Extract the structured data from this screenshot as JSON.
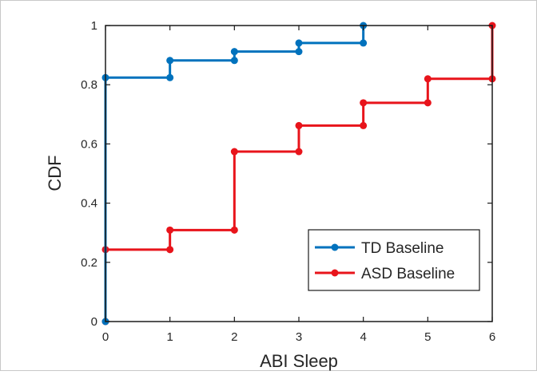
{
  "chart_data": {
    "type": "line",
    "step": true,
    "xlabel": "ABI Sleep",
    "ylabel": "CDF",
    "xlim": [
      0,
      6
    ],
    "ylim": [
      0,
      1
    ],
    "xticks": [
      0,
      1,
      2,
      3,
      4,
      5,
      6
    ],
    "yticks": [
      0,
      0.2,
      0.4,
      0.6,
      0.8,
      1
    ],
    "ytick_labels": [
      "0",
      "0.2",
      "0.4",
      "0.6",
      "0.8",
      "1"
    ],
    "grid": false,
    "legend_position": "bottom-right",
    "series": [
      {
        "name": "TD Baseline",
        "color": "#0072BD",
        "x": [
          0,
          1,
          2,
          3,
          4
        ],
        "y": [
          0.824,
          0.882,
          0.912,
          0.941,
          1.0
        ]
      },
      {
        "name": "ASD Baseline",
        "color": "#E8141B",
        "x": [
          0,
          1,
          2,
          3,
          4,
          5,
          6
        ],
        "y": [
          0.243,
          0.309,
          0.574,
          0.662,
          0.739,
          0.82,
          1.0
        ]
      }
    ]
  }
}
